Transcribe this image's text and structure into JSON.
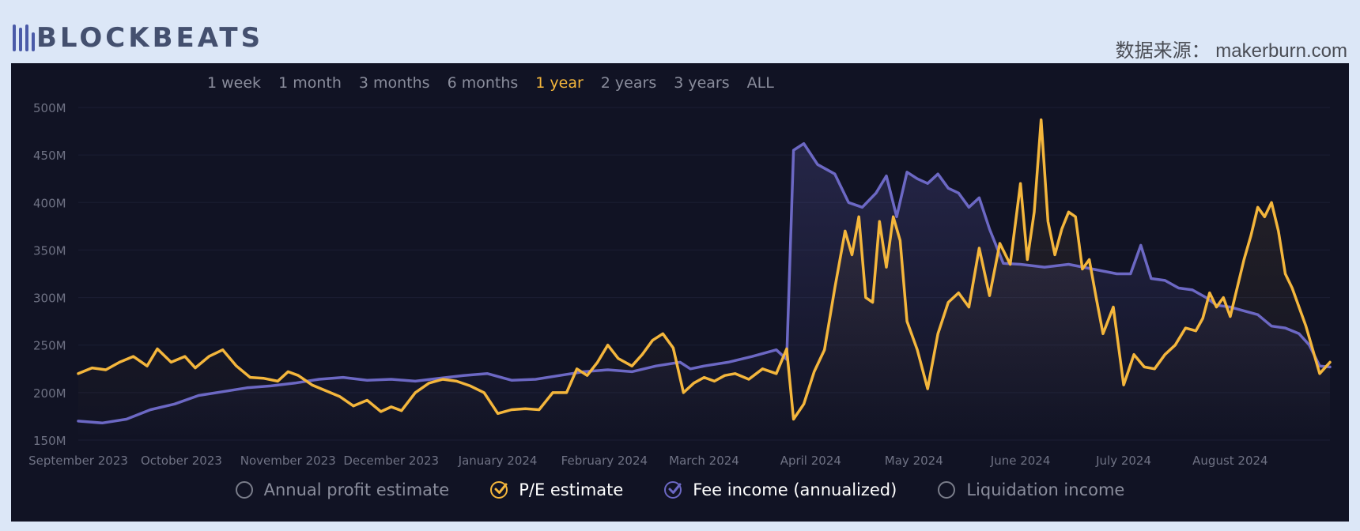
{
  "brand": {
    "name": "BLOCKBEATS",
    "icon": "bars-logo-icon"
  },
  "source": "数据来源： makerburn.com",
  "ranges": [
    {
      "label": "1 week",
      "active": false
    },
    {
      "label": "1 month",
      "active": false
    },
    {
      "label": "3 months",
      "active": false
    },
    {
      "label": "6 months",
      "active": false
    },
    {
      "label": "1 year",
      "active": true
    },
    {
      "label": "2 years",
      "active": false
    },
    {
      "label": "3 years",
      "active": false
    },
    {
      "label": "ALL",
      "active": false
    }
  ],
  "legend": [
    {
      "label": "Annual profit estimate",
      "checked": false,
      "color": "#7a7d8a"
    },
    {
      "label": "P/E estimate",
      "checked": true,
      "color": "#f4b63c"
    },
    {
      "label": "Fee income (annualized)",
      "checked": true,
      "color": "#6c68c4"
    },
    {
      "label": "Liquidation income",
      "checked": false,
      "color": "#7a7d8a"
    }
  ],
  "colors": {
    "pe": "#f4b63c",
    "fee": "#6c68c4",
    "background": "#111324",
    "axis_text": "#6f7284"
  },
  "chart_data": {
    "type": "line",
    "ylim": [
      150,
      500
    ],
    "y_ticks": [
      "150M",
      "200M",
      "250M",
      "300M",
      "350M",
      "400M",
      "450M",
      "500M"
    ],
    "y_tick_values": [
      150,
      200,
      250,
      300,
      350,
      400,
      450,
      500
    ],
    "x_ticks": [
      "September 2023",
      "October 2023",
      "November 2023",
      "December 2023",
      "January 2024",
      "February 2024",
      "March 2024",
      "April 2024",
      "May 2024",
      "June 2024",
      "July 2024",
      "August 2024"
    ],
    "x_tick_dates": [
      "2023-09-01",
      "2023-10-01",
      "2023-11-01",
      "2023-12-01",
      "2024-01-01",
      "2024-02-01",
      "2024-03-01",
      "2024-04-01",
      "2024-05-01",
      "2024-06-01",
      "2024-07-01",
      "2024-08-01"
    ],
    "x_range": [
      "2023-09-01",
      "2024-08-30"
    ],
    "grid": true,
    "legend_position": "bottom",
    "series": [
      {
        "name": "P/E estimate",
        "color": "#f4b63c",
        "points": [
          [
            "2023-09-01",
            220
          ],
          [
            "2023-09-05",
            226
          ],
          [
            "2023-09-09",
            224
          ],
          [
            "2023-09-13",
            232
          ],
          [
            "2023-09-17",
            238
          ],
          [
            "2023-09-21",
            228
          ],
          [
            "2023-09-24",
            246
          ],
          [
            "2023-09-28",
            232
          ],
          [
            "2023-10-02",
            238
          ],
          [
            "2023-10-05",
            226
          ],
          [
            "2023-10-09",
            238
          ],
          [
            "2023-10-13",
            245
          ],
          [
            "2023-10-17",
            228
          ],
          [
            "2023-10-21",
            216
          ],
          [
            "2023-10-25",
            215
          ],
          [
            "2023-10-29",
            212
          ],
          [
            "2023-11-01",
            222
          ],
          [
            "2023-11-04",
            218
          ],
          [
            "2023-11-08",
            208
          ],
          [
            "2023-11-12",
            202
          ],
          [
            "2023-11-16",
            196
          ],
          [
            "2023-11-20",
            186
          ],
          [
            "2023-11-24",
            192
          ],
          [
            "2023-11-28",
            180
          ],
          [
            "2023-12-01",
            185
          ],
          [
            "2023-12-04",
            181
          ],
          [
            "2023-12-08",
            200
          ],
          [
            "2023-12-12",
            210
          ],
          [
            "2023-12-16",
            214
          ],
          [
            "2023-12-20",
            212
          ],
          [
            "2023-12-24",
            207
          ],
          [
            "2023-12-28",
            200
          ],
          [
            "2024-01-01",
            178
          ],
          [
            "2024-01-05",
            182
          ],
          [
            "2024-01-09",
            183
          ],
          [
            "2024-01-13",
            182
          ],
          [
            "2024-01-17",
            200
          ],
          [
            "2024-01-21",
            200
          ],
          [
            "2024-01-24",
            225
          ],
          [
            "2024-01-27",
            218
          ],
          [
            "2024-01-30",
            232
          ],
          [
            "2024-02-02",
            250
          ],
          [
            "2024-02-05",
            236
          ],
          [
            "2024-02-09",
            228
          ],
          [
            "2024-02-12",
            240
          ],
          [
            "2024-02-15",
            255
          ],
          [
            "2024-02-18",
            262
          ],
          [
            "2024-02-21",
            247
          ],
          [
            "2024-02-24",
            200
          ],
          [
            "2024-02-27",
            210
          ],
          [
            "2024-03-01",
            216
          ],
          [
            "2024-03-04",
            212
          ],
          [
            "2024-03-07",
            218
          ],
          [
            "2024-03-10",
            220
          ],
          [
            "2024-03-14",
            214
          ],
          [
            "2024-03-18",
            225
          ],
          [
            "2024-03-22",
            220
          ],
          [
            "2024-03-25",
            246
          ],
          [
            "2024-03-27",
            172
          ],
          [
            "2024-03-30",
            188
          ],
          [
            "2024-04-02",
            222
          ],
          [
            "2024-04-05",
            245
          ],
          [
            "2024-04-08",
            310
          ],
          [
            "2024-04-11",
            370
          ],
          [
            "2024-04-13",
            345
          ],
          [
            "2024-04-15",
            385
          ],
          [
            "2024-04-17",
            300
          ],
          [
            "2024-04-19",
            295
          ],
          [
            "2024-04-21",
            380
          ],
          [
            "2024-04-23",
            332
          ],
          [
            "2024-04-25",
            385
          ],
          [
            "2024-04-27",
            360
          ],
          [
            "2024-04-29",
            275
          ],
          [
            "2024-05-02",
            245
          ],
          [
            "2024-05-05",
            204
          ],
          [
            "2024-05-08",
            262
          ],
          [
            "2024-05-11",
            295
          ],
          [
            "2024-05-14",
            305
          ],
          [
            "2024-05-17",
            290
          ],
          [
            "2024-05-20",
            352
          ],
          [
            "2024-05-23",
            302
          ],
          [
            "2024-05-26",
            357
          ],
          [
            "2024-05-29",
            335
          ],
          [
            "2024-06-01",
            420
          ],
          [
            "2024-06-03",
            340
          ],
          [
            "2024-06-05",
            390
          ],
          [
            "2024-06-07",
            487
          ],
          [
            "2024-06-09",
            380
          ],
          [
            "2024-06-11",
            345
          ],
          [
            "2024-06-13",
            372
          ],
          [
            "2024-06-15",
            390
          ],
          [
            "2024-06-17",
            385
          ],
          [
            "2024-06-19",
            330
          ],
          [
            "2024-06-21",
            340
          ],
          [
            "2024-06-23",
            300
          ],
          [
            "2024-06-25",
            262
          ],
          [
            "2024-06-28",
            290
          ],
          [
            "2024-07-01",
            208
          ],
          [
            "2024-07-04",
            240
          ],
          [
            "2024-07-07",
            227
          ],
          [
            "2024-07-10",
            225
          ],
          [
            "2024-07-13",
            240
          ],
          [
            "2024-07-16",
            250
          ],
          [
            "2024-07-19",
            268
          ],
          [
            "2024-07-22",
            265
          ],
          [
            "2024-07-24",
            278
          ],
          [
            "2024-07-26",
            305
          ],
          [
            "2024-07-28",
            290
          ],
          [
            "2024-07-30",
            300
          ],
          [
            "2024-08-01",
            280
          ],
          [
            "2024-08-03",
            310
          ],
          [
            "2024-08-05",
            340
          ],
          [
            "2024-08-07",
            365
          ],
          [
            "2024-08-09",
            395
          ],
          [
            "2024-08-11",
            385
          ],
          [
            "2024-08-13",
            400
          ],
          [
            "2024-08-15",
            370
          ],
          [
            "2024-08-17",
            325
          ],
          [
            "2024-08-19",
            310
          ],
          [
            "2024-08-21",
            290
          ],
          [
            "2024-08-23",
            270
          ],
          [
            "2024-08-25",
            245
          ],
          [
            "2024-08-27",
            220
          ],
          [
            "2024-08-30",
            232
          ]
        ]
      },
      {
        "name": "Fee income (annualized)",
        "color": "#6c68c4",
        "points": [
          [
            "2023-09-01",
            170
          ],
          [
            "2023-09-08",
            168
          ],
          [
            "2023-09-15",
            172
          ],
          [
            "2023-09-22",
            182
          ],
          [
            "2023-09-29",
            188
          ],
          [
            "2023-10-06",
            197
          ],
          [
            "2023-10-13",
            201
          ],
          [
            "2023-10-20",
            205
          ],
          [
            "2023-10-27",
            207
          ],
          [
            "2023-11-03",
            210
          ],
          [
            "2023-11-10",
            214
          ],
          [
            "2023-11-17",
            216
          ],
          [
            "2023-11-24",
            213
          ],
          [
            "2023-12-01",
            214
          ],
          [
            "2023-12-08",
            212
          ],
          [
            "2023-12-15",
            215
          ],
          [
            "2023-12-22",
            218
          ],
          [
            "2023-12-29",
            220
          ],
          [
            "2024-01-05",
            213
          ],
          [
            "2024-01-12",
            214
          ],
          [
            "2024-01-19",
            218
          ],
          [
            "2024-01-26",
            222
          ],
          [
            "2024-02-02",
            224
          ],
          [
            "2024-02-09",
            222
          ],
          [
            "2024-02-16",
            228
          ],
          [
            "2024-02-23",
            232
          ],
          [
            "2024-02-26",
            225
          ],
          [
            "2024-03-01",
            228
          ],
          [
            "2024-03-08",
            232
          ],
          [
            "2024-03-15",
            238
          ],
          [
            "2024-03-22",
            245
          ],
          [
            "2024-03-25",
            235
          ],
          [
            "2024-03-27",
            455
          ],
          [
            "2024-03-30",
            462
          ],
          [
            "2024-04-03",
            440
          ],
          [
            "2024-04-08",
            430
          ],
          [
            "2024-04-12",
            400
          ],
          [
            "2024-04-16",
            395
          ],
          [
            "2024-04-20",
            410
          ],
          [
            "2024-04-23",
            428
          ],
          [
            "2024-04-26",
            385
          ],
          [
            "2024-04-29",
            432
          ],
          [
            "2024-05-02",
            425
          ],
          [
            "2024-05-05",
            420
          ],
          [
            "2024-05-08",
            430
          ],
          [
            "2024-05-11",
            415
          ],
          [
            "2024-05-14",
            410
          ],
          [
            "2024-05-17",
            395
          ],
          [
            "2024-05-20",
            405
          ],
          [
            "2024-05-23",
            372
          ],
          [
            "2024-05-27",
            336
          ],
          [
            "2024-06-01",
            335
          ],
          [
            "2024-06-08",
            332
          ],
          [
            "2024-06-15",
            335
          ],
          [
            "2024-06-22",
            330
          ],
          [
            "2024-06-29",
            325
          ],
          [
            "2024-07-03",
            325
          ],
          [
            "2024-07-06",
            355
          ],
          [
            "2024-07-09",
            320
          ],
          [
            "2024-07-13",
            318
          ],
          [
            "2024-07-17",
            310
          ],
          [
            "2024-07-21",
            308
          ],
          [
            "2024-07-25",
            300
          ],
          [
            "2024-07-28",
            292
          ],
          [
            "2024-08-01",
            290
          ],
          [
            "2024-08-05",
            286
          ],
          [
            "2024-08-09",
            282
          ],
          [
            "2024-08-13",
            270
          ],
          [
            "2024-08-17",
            268
          ],
          [
            "2024-08-21",
            262
          ],
          [
            "2024-08-24",
            250
          ],
          [
            "2024-08-27",
            228
          ],
          [
            "2024-08-30",
            227
          ]
        ]
      }
    ]
  }
}
